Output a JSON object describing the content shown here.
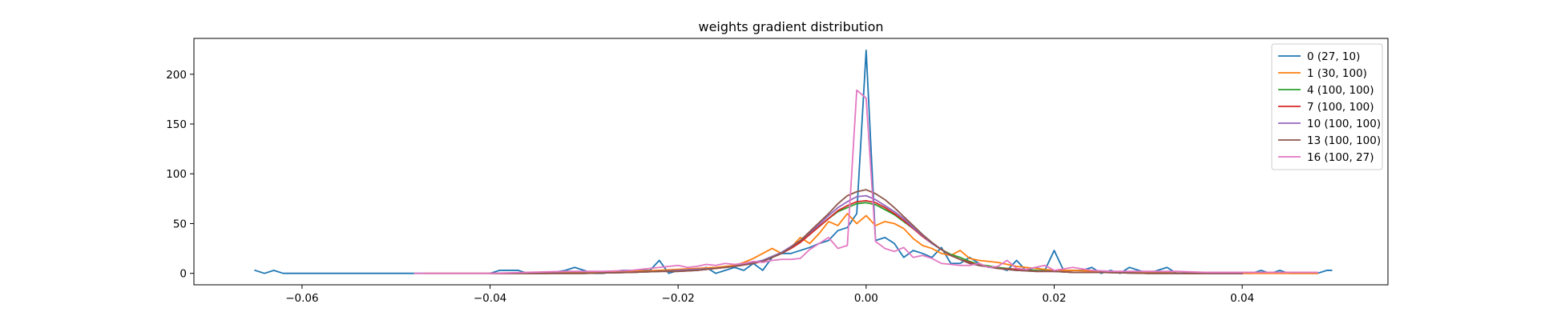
{
  "chart_data": {
    "type": "line",
    "title": "weights gradient distribution",
    "xlabel": "",
    "ylabel": "",
    "xlim": [
      -0.0715,
      0.0555
    ],
    "ylim": [
      -11.5,
      236
    ],
    "xticks": [
      -0.06,
      -0.04,
      -0.02,
      0.0,
      0.02,
      0.04
    ],
    "xtick_labels": [
      "−0.06",
      "−0.04",
      "−0.02",
      "0.00",
      "0.02",
      "0.04"
    ],
    "yticks": [
      0,
      50,
      100,
      150,
      200
    ],
    "ytick_labels": [
      "0",
      "50",
      "100",
      "150",
      "200"
    ],
    "grid": false,
    "legend_position": "top-right",
    "series": [
      {
        "name": "0 (27, 10)",
        "color": "#1f77b4",
        "x": [
          -0.065,
          -0.064,
          -0.063,
          -0.062,
          -0.06,
          -0.055,
          -0.05,
          -0.045,
          -0.04,
          -0.039,
          -0.037,
          -0.036,
          -0.034,
          -0.032,
          -0.031,
          -0.03,
          -0.029,
          -0.028,
          -0.026,
          -0.025,
          -0.024,
          -0.023,
          -0.022,
          -0.021,
          -0.02,
          -0.019,
          -0.018,
          -0.017,
          -0.016,
          -0.015,
          -0.014,
          -0.013,
          -0.012,
          -0.011,
          -0.01,
          -0.009,
          -0.008,
          -0.007,
          -0.006,
          -0.005,
          -0.004,
          -0.003,
          -0.002,
          -0.001,
          0.0,
          0.001,
          0.002,
          0.003,
          0.004,
          0.005,
          0.006,
          0.007,
          0.008,
          0.009,
          0.01,
          0.011,
          0.012,
          0.013,
          0.014,
          0.015,
          0.016,
          0.017,
          0.018,
          0.019,
          0.02,
          0.021,
          0.022,
          0.023,
          0.024,
          0.025,
          0.026,
          0.027,
          0.028,
          0.03,
          0.031,
          0.032,
          0.033,
          0.035,
          0.037,
          0.039,
          0.04,
          0.041,
          0.042,
          0.043,
          0.044,
          0.045,
          0.047,
          0.048,
          0.049,
          0.0495
        ],
        "y": [
          3,
          0,
          3,
          0,
          0,
          0,
          0,
          0,
          0,
          3,
          3,
          0,
          0,
          3,
          6,
          3,
          0,
          0,
          3,
          3,
          3,
          3,
          13,
          0,
          3,
          3,
          3,
          6,
          0,
          3,
          6,
          3,
          10,
          3,
          16,
          20,
          20,
          23,
          26,
          30,
          33,
          43,
          46,
          60,
          224,
          33,
          36,
          30,
          16,
          23,
          20,
          16,
          26,
          10,
          10,
          16,
          10,
          6,
          6,
          3,
          13,
          3,
          6,
          3,
          23,
          3,
          3,
          3,
          6,
          0,
          3,
          0,
          6,
          0,
          3,
          6,
          0,
          0,
          0,
          0,
          0,
          0,
          3,
          0,
          3,
          0,
          0,
          0,
          3,
          3
        ]
      },
      {
        "name": "1 (30, 100)",
        "color": "#ff7f0e",
        "x": [
          -0.047,
          -0.044,
          -0.04,
          -0.037,
          -0.034,
          -0.031,
          -0.028,
          -0.025,
          -0.022,
          -0.02,
          -0.018,
          -0.016,
          -0.014,
          -0.013,
          -0.012,
          -0.011,
          -0.01,
          -0.009,
          -0.008,
          -0.007,
          -0.006,
          -0.005,
          -0.004,
          -0.003,
          -0.002,
          -0.001,
          0.0,
          0.001,
          0.002,
          0.003,
          0.004,
          0.005,
          0.006,
          0.007,
          0.008,
          0.009,
          0.01,
          0.011,
          0.012,
          0.013,
          0.014,
          0.016,
          0.018,
          0.02,
          0.022,
          0.025,
          0.028,
          0.031,
          0.034,
          0.037,
          0.04,
          0.043,
          0.046,
          0.048
        ],
        "y": [
          0,
          0,
          0,
          0,
          0,
          1,
          1,
          2,
          3,
          4,
          5,
          6,
          8,
          11,
          15,
          20,
          25,
          20,
          26,
          36,
          30,
          40,
          52,
          48,
          60,
          50,
          58,
          48,
          52,
          50,
          45,
          35,
          28,
          25,
          20,
          18,
          23,
          15,
          13,
          12,
          11,
          7,
          5,
          3,
          3,
          2,
          1,
          1,
          0,
          0,
          0,
          0,
          0,
          0
        ]
      },
      {
        "name": "4 (100, 100)",
        "color": "#2ca02c",
        "x": [
          -0.04,
          -0.035,
          -0.03,
          -0.025,
          -0.022,
          -0.02,
          -0.018,
          -0.016,
          -0.014,
          -0.012,
          -0.011,
          -0.01,
          -0.009,
          -0.008,
          -0.007,
          -0.006,
          -0.005,
          -0.004,
          -0.003,
          -0.002,
          -0.001,
          0.0,
          0.001,
          0.002,
          0.003,
          0.004,
          0.005,
          0.006,
          0.007,
          0.008,
          0.009,
          0.01,
          0.011,
          0.012,
          0.014,
          0.016,
          0.018,
          0.02,
          0.022,
          0.025,
          0.03,
          0.035,
          0.04
        ],
        "y": [
          0,
          0,
          0,
          1,
          2,
          3,
          4,
          5,
          7,
          11,
          13,
          17,
          21,
          26,
          32,
          40,
          47,
          55,
          62,
          66,
          70,
          71,
          69,
          64,
          59,
          52,
          45,
          38,
          30,
          24,
          19,
          16,
          12,
          9,
          6,
          4,
          3,
          2,
          1,
          1,
          0,
          0,
          0
        ]
      },
      {
        "name": "7 (100, 100)",
        "color": "#d62728",
        "x": [
          -0.04,
          -0.035,
          -0.03,
          -0.025,
          -0.022,
          -0.02,
          -0.018,
          -0.016,
          -0.014,
          -0.012,
          -0.011,
          -0.01,
          -0.009,
          -0.008,
          -0.007,
          -0.006,
          -0.005,
          -0.004,
          -0.003,
          -0.002,
          -0.001,
          0.0,
          0.001,
          0.002,
          0.003,
          0.004,
          0.005,
          0.006,
          0.007,
          0.008,
          0.009,
          0.01,
          0.011,
          0.012,
          0.014,
          0.016,
          0.018,
          0.02,
          0.022,
          0.025,
          0.03,
          0.035,
          0.04
        ],
        "y": [
          0,
          0,
          0,
          1,
          2,
          2,
          3,
          5,
          7,
          10,
          12,
          16,
          20,
          25,
          31,
          39,
          47,
          55,
          63,
          68,
          72,
          73,
          71,
          66,
          60,
          53,
          45,
          37,
          30,
          24,
          18,
          14,
          11,
          8,
          5,
          4,
          2,
          2,
          1,
          1,
          0,
          0,
          0
        ]
      },
      {
        "name": "10 (100, 100)",
        "color": "#9467bd",
        "x": [
          -0.04,
          -0.035,
          -0.03,
          -0.025,
          -0.022,
          -0.02,
          -0.018,
          -0.016,
          -0.014,
          -0.012,
          -0.011,
          -0.01,
          -0.009,
          -0.008,
          -0.007,
          -0.006,
          -0.005,
          -0.004,
          -0.003,
          -0.002,
          -0.001,
          0.0,
          0.001,
          0.002,
          0.003,
          0.004,
          0.005,
          0.006,
          0.007,
          0.008,
          0.009,
          0.01,
          0.011,
          0.012,
          0.014,
          0.016,
          0.018,
          0.02,
          0.022,
          0.025,
          0.03,
          0.035,
          0.04
        ],
        "y": [
          0,
          0,
          0,
          1,
          2,
          3,
          4,
          5,
          7,
          11,
          13,
          17,
          21,
          27,
          33,
          41,
          49,
          58,
          66,
          72,
          77,
          78,
          74,
          68,
          62,
          55,
          46,
          38,
          30,
          24,
          18,
          14,
          10,
          8,
          5,
          3,
          2,
          2,
          1,
          1,
          0,
          0,
          0
        ]
      },
      {
        "name": "13 (100, 100)",
        "color": "#8c564b",
        "x": [
          -0.04,
          -0.035,
          -0.03,
          -0.025,
          -0.022,
          -0.02,
          -0.018,
          -0.016,
          -0.014,
          -0.012,
          -0.011,
          -0.01,
          -0.009,
          -0.008,
          -0.007,
          -0.006,
          -0.005,
          -0.004,
          -0.003,
          -0.002,
          -0.001,
          0.0,
          0.001,
          0.002,
          0.003,
          0.004,
          0.005,
          0.006,
          0.007,
          0.008,
          0.009,
          0.01,
          0.011,
          0.012,
          0.014,
          0.016,
          0.018,
          0.02,
          0.022,
          0.025,
          0.03,
          0.035,
          0.04
        ],
        "y": [
          0,
          0,
          0,
          1,
          2,
          2,
          3,
          5,
          7,
          10,
          12,
          16,
          20,
          26,
          33,
          42,
          51,
          60,
          70,
          78,
          82,
          84,
          80,
          74,
          66,
          57,
          48,
          39,
          31,
          24,
          18,
          14,
          10,
          8,
          5,
          3,
          2,
          2,
          1,
          1,
          0,
          0,
          0
        ]
      },
      {
        "name": "16 (100, 27)",
        "color": "#e377c2",
        "x": [
          -0.048,
          -0.044,
          -0.04,
          -0.036,
          -0.032,
          -0.028,
          -0.025,
          -0.023,
          -0.021,
          -0.02,
          -0.019,
          -0.018,
          -0.017,
          -0.016,
          -0.015,
          -0.014,
          -0.013,
          -0.012,
          -0.011,
          -0.01,
          -0.009,
          -0.008,
          -0.007,
          -0.006,
          -0.005,
          -0.004,
          -0.003,
          -0.002,
          -0.001,
          0.0,
          0.001,
          0.002,
          0.003,
          0.004,
          0.005,
          0.006,
          0.007,
          0.008,
          0.009,
          0.01,
          0.011,
          0.012,
          0.013,
          0.014,
          0.015,
          0.016,
          0.017,
          0.018,
          0.019,
          0.02,
          0.022,
          0.024,
          0.026,
          0.028,
          0.03,
          0.033,
          0.036,
          0.04,
          0.044,
          0.048
        ],
        "y": [
          0,
          0,
          0,
          1,
          2,
          2,
          3,
          5,
          7,
          8,
          6,
          7,
          9,
          8,
          10,
          9,
          10,
          12,
          11,
          13,
          14,
          14,
          15,
          24,
          30,
          36,
          25,
          28,
          184,
          176,
          32,
          25,
          22,
          26,
          16,
          18,
          15,
          10,
          9,
          8,
          8,
          10,
          6,
          7,
          13,
          5,
          4,
          6,
          8,
          3,
          6,
          3,
          2,
          2,
          2,
          2,
          1,
          1,
          1,
          1
        ]
      }
    ]
  }
}
